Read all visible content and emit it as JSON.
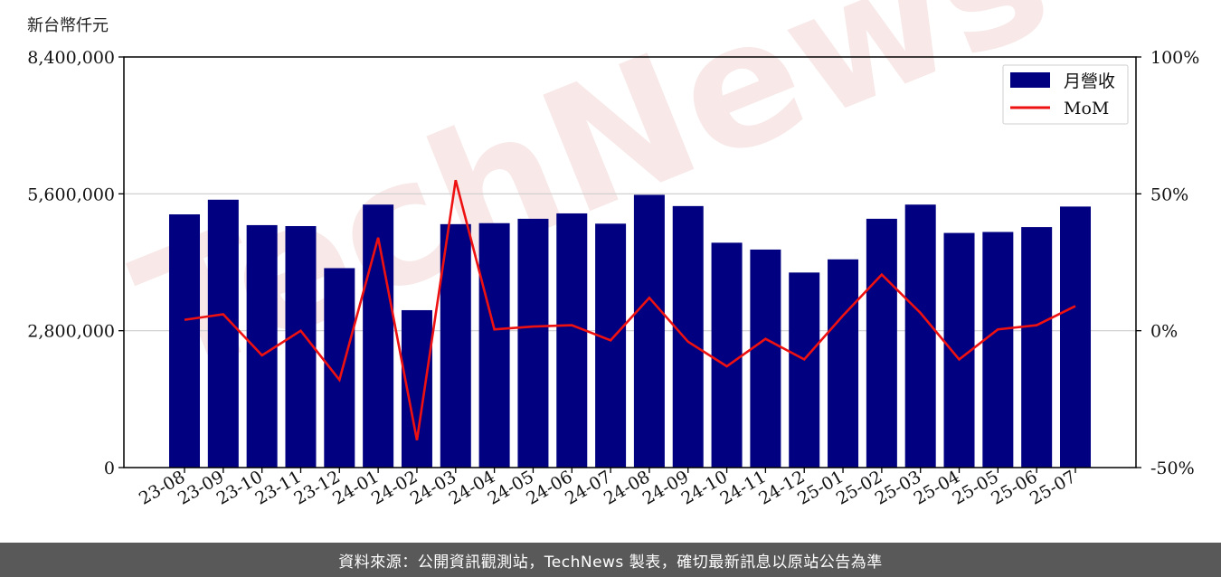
{
  "unit_label": "新台幣仟元",
  "footer_text": "資料來源：公開資訊觀測站，TechNews 製表，確切最新訊息以原站公告為準",
  "watermark": "TechNews",
  "colors": {
    "bar": "#000080",
    "line": "#ee1111",
    "grid": "#cccccc",
    "footer_bg": "#595959",
    "watermark": "#f2d6d6"
  },
  "chart_data": {
    "type": "bar",
    "categories": [
      "23-08",
      "23-09",
      "23-10",
      "23-11",
      "23-12",
      "24-01",
      "24-02",
      "24-03",
      "24-04",
      "24-05",
      "24-06",
      "24-07",
      "24-08",
      "24-09",
      "24-10",
      "24-11",
      "24-12",
      "25-01",
      "25-02",
      "25-03",
      "25-04",
      "25-05",
      "25-06",
      "25-07"
    ],
    "series": [
      {
        "name": "月營收",
        "axis": "left",
        "type": "bar",
        "values": [
          5180000,
          5480000,
          4960000,
          4940000,
          4080000,
          5380000,
          3220000,
          4980000,
          5000000,
          5090000,
          5200000,
          4990000,
          5580000,
          5350000,
          4600000,
          4460000,
          3990000,
          4260000,
          5090000,
          5380000,
          4800000,
          4820000,
          4920000,
          5340000
        ]
      },
      {
        "name": "MoM",
        "axis": "right",
        "type": "line",
        "unit": "%",
        "values": [
          4.0,
          6.0,
          -9.0,
          0.0,
          -18.0,
          34.0,
          -40.0,
          55.0,
          0.5,
          1.5,
          2.0,
          -3.5,
          12.0,
          -4.0,
          -13.0,
          -3.0,
          -10.5,
          5.5,
          20.5,
          6.5,
          -10.5,
          0.5,
          2.0,
          9.0
        ]
      }
    ],
    "y_left": {
      "lim": [
        0,
        8400000
      ],
      "ticks": [
        "0",
        "2,800,000",
        "5,600,000",
        "8,400,000"
      ],
      "tick_values": [
        0,
        2800000,
        5600000,
        8400000
      ]
    },
    "y_right": {
      "lim": [
        -50,
        100
      ],
      "ticks": [
        "-50%",
        "0%",
        "50%",
        "100%"
      ],
      "tick_values": [
        -50,
        0,
        50,
        100
      ]
    },
    "grid": "horizontal",
    "legend": {
      "position": "top-right",
      "entries": [
        "月營收",
        "MoM"
      ]
    }
  }
}
